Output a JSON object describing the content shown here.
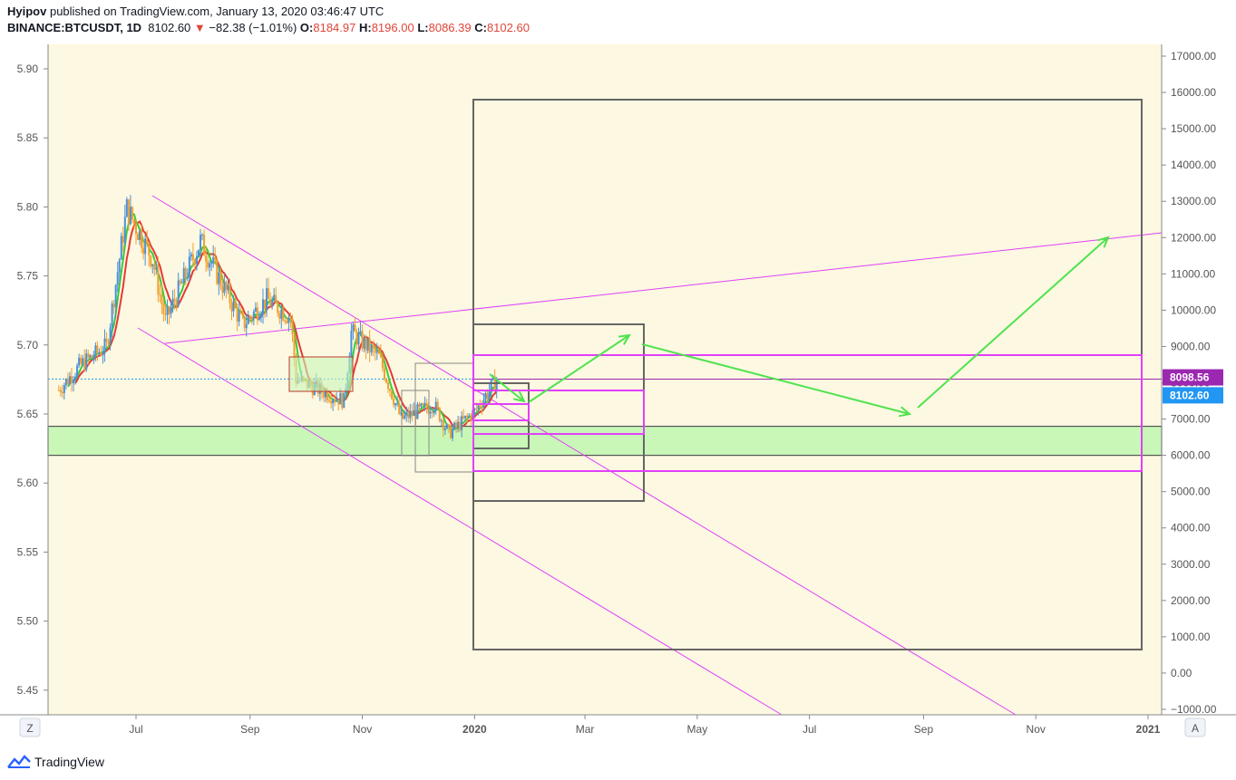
{
  "header": {
    "author": "Hyipov",
    "published_text": "published on TradingView.com, January 13, 2020 03:46:47 UTC",
    "symbol": "BINANCE:BTCUSDT, 1D",
    "last": "8102.60",
    "change_arrow": "▼",
    "change": "−82.38 (−1.01%)",
    "open_label": "O:",
    "open": "8184.97",
    "high_label": "H:",
    "high": "8196.00",
    "low_label": "L:",
    "low": "8086.39",
    "close_label": "C:",
    "close": "8102.60"
  },
  "chart_data": {
    "type": "candlestick",
    "background": "#fdf8e1",
    "left_axis_ticks": [
      "5.90",
      "5.85",
      "5.80",
      "5.75",
      "5.70",
      "5.65",
      "5.60",
      "5.55",
      "5.50",
      "5.45"
    ],
    "right_axis_ticks": [
      "17000.00",
      "16000.00",
      "15000.00",
      "14000.00",
      "13000.00",
      "12000.00",
      "11000.00",
      "10000.00",
      "9000.00",
      "8000.00",
      "7000.00",
      "6000.00",
      "5000.00",
      "4000.00",
      "3000.00",
      "2000.00",
      "1000.00",
      "0.00",
      "−1000.00"
    ],
    "right_axis_range": [
      -1000,
      17000
    ],
    "x_ticks": [
      "Jul",
      "Sep",
      "Nov",
      "2020",
      "Mar",
      "May",
      "Jul",
      "Sep",
      "Nov",
      "2021"
    ],
    "price_labels": [
      {
        "text": "8098.56",
        "value": 8098.56,
        "color": "#9c27b0"
      },
      {
        "text": "8102.60",
        "value": 8102.6,
        "color": "#2196f3"
      }
    ],
    "approx_daily_close_path": [
      {
        "date": "2019-05-20",
        "close": 7800
      },
      {
        "date": "2019-06-01",
        "close": 8500
      },
      {
        "date": "2019-06-15",
        "close": 9000
      },
      {
        "date": "2019-06-26",
        "close": 12800
      },
      {
        "date": "2019-07-10",
        "close": 11400
      },
      {
        "date": "2019-07-17",
        "close": 9700
      },
      {
        "date": "2019-08-05",
        "close": 11900
      },
      {
        "date": "2019-08-28",
        "close": 9600
      },
      {
        "date": "2019-09-10",
        "close": 10300
      },
      {
        "date": "2019-09-23",
        "close": 9800
      },
      {
        "date": "2019-09-26",
        "close": 8100
      },
      {
        "date": "2019-10-22",
        "close": 7500
      },
      {
        "date": "2019-10-26",
        "close": 9400
      },
      {
        "date": "2019-11-10",
        "close": 8700
      },
      {
        "date": "2019-11-22",
        "close": 7000
      },
      {
        "date": "2019-12-10",
        "close": 7400
      },
      {
        "date": "2019-12-18",
        "close": 6600
      },
      {
        "date": "2020-01-01",
        "close": 7200
      },
      {
        "date": "2020-01-13",
        "close": 8102.6
      }
    ],
    "support_zone": {
      "low": 6000,
      "high": 6800,
      "color": "#c8f7b8"
    },
    "moving_averages": [
      "green",
      "red"
    ],
    "grid": false,
    "legend": "none",
    "drawings": [
      "descending channel (magenta)",
      "rising trendline (magenta)",
      "projection boxes (gray)",
      "target boxes (magenta)",
      "projected path arrows (green)"
    ]
  },
  "axis_buttons": {
    "left": "Z",
    "right": "A"
  },
  "footer": {
    "brand": "TradingView"
  }
}
